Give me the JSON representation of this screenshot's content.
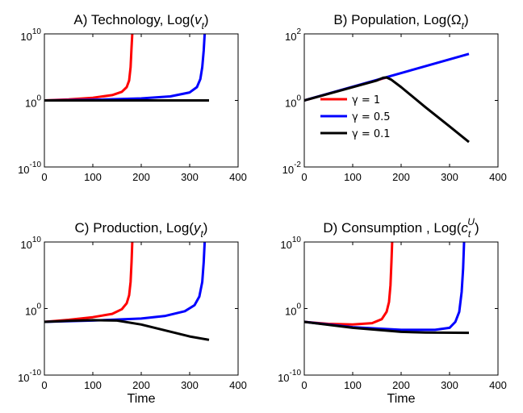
{
  "colors": {
    "gamma_1": "#ff0000",
    "gamma_0_5": "#0000ff",
    "gamma_0_1": "#000000"
  },
  "legend": {
    "location": "panel B, lower-left",
    "entries": [
      "γ = 1",
      "γ = 0.5",
      "γ = 0.1"
    ]
  },
  "chart_data": [
    {
      "id": "A",
      "type": "line",
      "title": "A) Technology, Log(",
      "title_var": "v",
      "title_sub": "t",
      "title_close": ")",
      "xlabel": "",
      "ylabel": "",
      "xlim": [
        0,
        400
      ],
      "ylim_log10": [
        -10,
        10
      ],
      "yscale": "log",
      "xtick_labels": [
        "0",
        "100",
        "200",
        "300",
        "400"
      ],
      "ytick_labels": [
        {
          "base": "10",
          "exp": "10",
          "log": 10
        },
        {
          "base": "10",
          "exp": "0",
          "log": 0
        },
        {
          "base": "10",
          "exp": "-10",
          "log": -10
        }
      ],
      "series": [
        {
          "name": "γ = 1",
          "color_key": "gamma_1",
          "x": [
            0,
            50,
            100,
            140,
            160,
            170,
            175,
            178,
            180,
            181.5
          ],
          "y_log10": [
            0,
            0.15,
            0.4,
            0.8,
            1.3,
            2.0,
            3.0,
            5.0,
            8.0,
            10
          ]
        },
        {
          "name": "γ = 0.5",
          "color_key": "gamma_0_5",
          "x": [
            0,
            100,
            200,
            260,
            300,
            315,
            322,
            326,
            329,
            331
          ],
          "y_log10": [
            0,
            0.1,
            0.3,
            0.6,
            1.2,
            2.0,
            3.2,
            5.0,
            7.5,
            10
          ]
        },
        {
          "name": "γ = 0.1",
          "color_key": "gamma_0_1",
          "x": [
            0,
            340
          ],
          "y_log10": [
            0,
            0
          ]
        }
      ]
    },
    {
      "id": "B",
      "type": "line",
      "title": "B) Population, Log(Ω",
      "title_var": "",
      "title_sub": "t",
      "title_close": ")",
      "xlabel": "",
      "ylabel": "",
      "xlim": [
        0,
        400
      ],
      "ylim_log10": [
        -2,
        2
      ],
      "yscale": "log",
      "xtick_labels": [
        "0",
        "100",
        "200",
        "300",
        "400"
      ],
      "ytick_labels": [
        {
          "base": "10",
          "exp": "2",
          "log": 2
        },
        {
          "base": "10",
          "exp": "0",
          "log": 0
        },
        {
          "base": "10",
          "exp": "-2",
          "log": -2
        }
      ],
      "series": [
        {
          "name": "γ = 1",
          "color_key": "gamma_1",
          "x": [
            0,
            170
          ],
          "y_log10": [
            0,
            0.69
          ]
        },
        {
          "name": "γ = 0.5",
          "color_key": "gamma_0_5",
          "x": [
            0,
            340
          ],
          "y_log10": [
            0,
            1.4
          ]
        },
        {
          "name": "γ = 0.1",
          "color_key": "gamma_0_1",
          "x": [
            0,
            150,
            163,
            170,
            180,
            200,
            250,
            300,
            340
          ],
          "y_log10": [
            0,
            0.6,
            0.68,
            0.69,
            0.62,
            0.4,
            -0.2,
            -0.78,
            -1.25
          ]
        }
      ]
    },
    {
      "id": "C",
      "type": "line",
      "title": "C) Production, Log(",
      "title_var": "y",
      "title_sub": "t",
      "title_close": ")",
      "xlabel": "Time",
      "ylabel": "",
      "xlim": [
        0,
        400
      ],
      "ylim_log10": [
        -10,
        10
      ],
      "yscale": "log",
      "xtick_labels": [
        "0",
        "100",
        "200",
        "300",
        "400"
      ],
      "ytick_labels": [
        {
          "base": "10",
          "exp": "10",
          "log": 10
        },
        {
          "base": "10",
          "exp": "0",
          "log": 0
        },
        {
          "base": "10",
          "exp": "-10",
          "log": -10
        }
      ],
      "series": [
        {
          "name": "γ = 1",
          "color_key": "gamma_1",
          "x": [
            0,
            50,
            100,
            140,
            160,
            170,
            175,
            178,
            180,
            181.5
          ],
          "y_log10": [
            -2,
            -1.7,
            -1.3,
            -0.8,
            -0.1,
            0.8,
            2.0,
            4.0,
            7.0,
            10
          ]
        },
        {
          "name": "γ = 0.5",
          "color_key": "gamma_0_5",
          "x": [
            0,
            100,
            200,
            250,
            290,
            310,
            320,
            326,
            329,
            331
          ],
          "y_log10": [
            -2,
            -1.8,
            -1.5,
            -1.1,
            -0.4,
            0.5,
            1.8,
            4.0,
            7.0,
            10
          ]
        },
        {
          "name": "γ = 0.1",
          "color_key": "gamma_0_1",
          "x": [
            0,
            50,
            100,
            150,
            200,
            250,
            300,
            340
          ],
          "y_log10": [
            -2,
            -1.85,
            -1.75,
            -1.8,
            -2.4,
            -3.3,
            -4.2,
            -4.7
          ]
        }
      ]
    },
    {
      "id": "D",
      "type": "line",
      "title": "D) Consumption , Log(",
      "title_var": "c",
      "title_sub": "t",
      "title_sup": "U",
      "title_close": ")",
      "xlabel": "Time",
      "ylabel": "",
      "xlim": [
        0,
        400
      ],
      "ylim_log10": [
        -10,
        10
      ],
      "yscale": "log",
      "xtick_labels": [
        "0",
        "100",
        "200",
        "300",
        "400"
      ],
      "ytick_labels": [
        {
          "base": "10",
          "exp": "10",
          "log": 10
        },
        {
          "base": "10",
          "exp": "0",
          "log": 0
        },
        {
          "base": "10",
          "exp": "-10",
          "log": -10
        }
      ],
      "series": [
        {
          "name": "γ = 1",
          "color_key": "gamma_1",
          "x": [
            0,
            50,
            100,
            140,
            160,
            170,
            175,
            178,
            180,
            181.5
          ],
          "y_log10": [
            -2,
            -2.3,
            -2.4,
            -2.2,
            -1.6,
            -0.5,
            1.0,
            3.5,
            7.0,
            10
          ]
        },
        {
          "name": "γ = 0.5",
          "color_key": "gamma_0_5",
          "x": [
            0,
            100,
            200,
            270,
            300,
            312,
            320,
            325,
            328,
            330
          ],
          "y_log10": [
            -2,
            -2.8,
            -3.2,
            -3.2,
            -2.9,
            -2.0,
            -0.5,
            2.5,
            6.0,
            10
          ]
        },
        {
          "name": "γ = 0.1",
          "color_key": "gamma_0_1",
          "x": [
            0,
            100,
            200,
            250,
            340
          ],
          "y_log10": [
            -2,
            -2.9,
            -3.5,
            -3.6,
            -3.65
          ]
        }
      ]
    }
  ]
}
